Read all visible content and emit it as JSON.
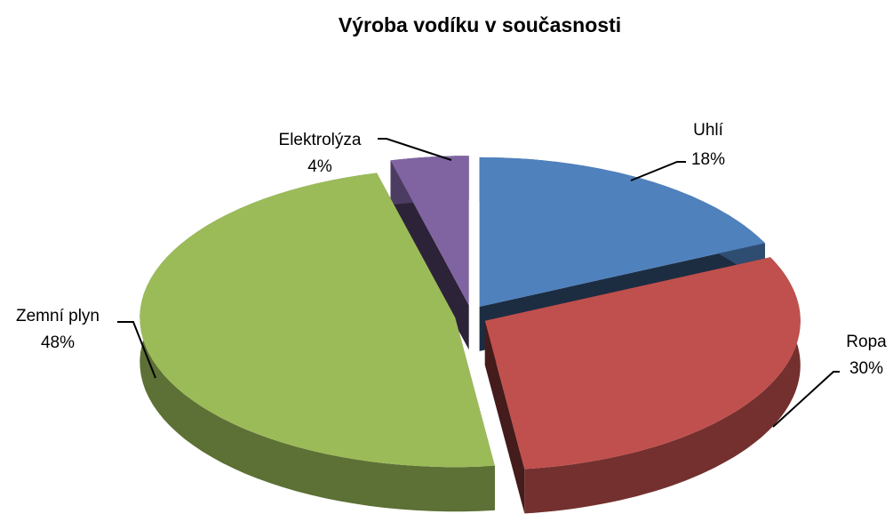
{
  "chart_data": {
    "type": "pie",
    "title": "Výroba vodíku v současnosti",
    "categories": [
      "Uhlí",
      "Ropa",
      "Zemní plyn",
      "Elektrolýza"
    ],
    "values": [
      18,
      30,
      48,
      4
    ],
    "value_labels": [
      "18%",
      "30%",
      "48%",
      "4%"
    ],
    "colors": [
      "#4f81bd",
      "#c0504d",
      "#9bbb59",
      "#8064a2"
    ]
  }
}
